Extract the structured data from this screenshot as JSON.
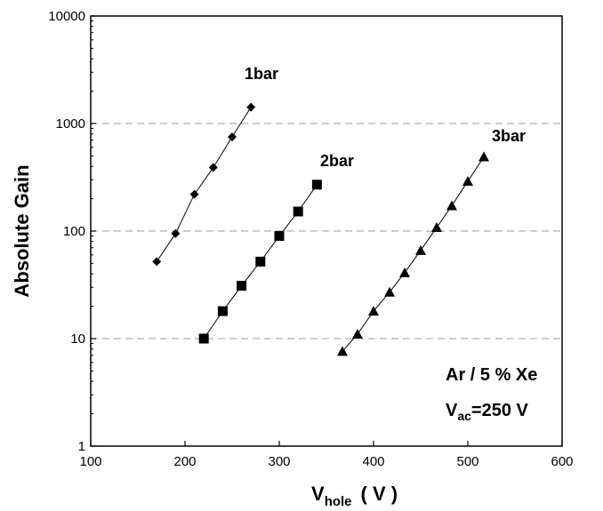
{
  "chart_data": {
    "type": "scatter",
    "x_axis": {
      "label": "V",
      "label_sub": "hole",
      "label_unit": "( V )",
      "range": [
        100,
        600
      ],
      "ticks": [
        100,
        200,
        300,
        400,
        500,
        600
      ]
    },
    "y_axis": {
      "label": "Absolute Gain",
      "scale": "log",
      "range": [
        1,
        10000
      ],
      "ticks": [
        1,
        10,
        100,
        1000,
        10000
      ],
      "grid": "dashed horizontal at 10, 100, 1000"
    },
    "series": [
      {
        "name": "1bar",
        "marker": "diamond",
        "x": [
          170,
          190,
          210,
          230,
          250,
          270
        ],
        "y": [
          52,
          95,
          220,
          390,
          750,
          1420
        ]
      },
      {
        "name": "2bar",
        "marker": "square",
        "x": [
          220,
          240,
          260,
          280,
          300,
          320,
          340
        ],
        "y": [
          10,
          18,
          31,
          52,
          90,
          152,
          270
        ]
      },
      {
        "name": "3bar",
        "marker": "triangle",
        "x": [
          367,
          383,
          400,
          417,
          433,
          450,
          467,
          483,
          500,
          517
        ],
        "y": [
          7.6,
          11,
          18,
          27,
          41,
          66,
          108,
          172,
          290,
          490
        ]
      }
    ],
    "annotation": {
      "line1": "Ar / 5 % Xe",
      "line2_main": "V",
      "line2_sub": "ac",
      "line2_rest": "=250 V"
    }
  }
}
